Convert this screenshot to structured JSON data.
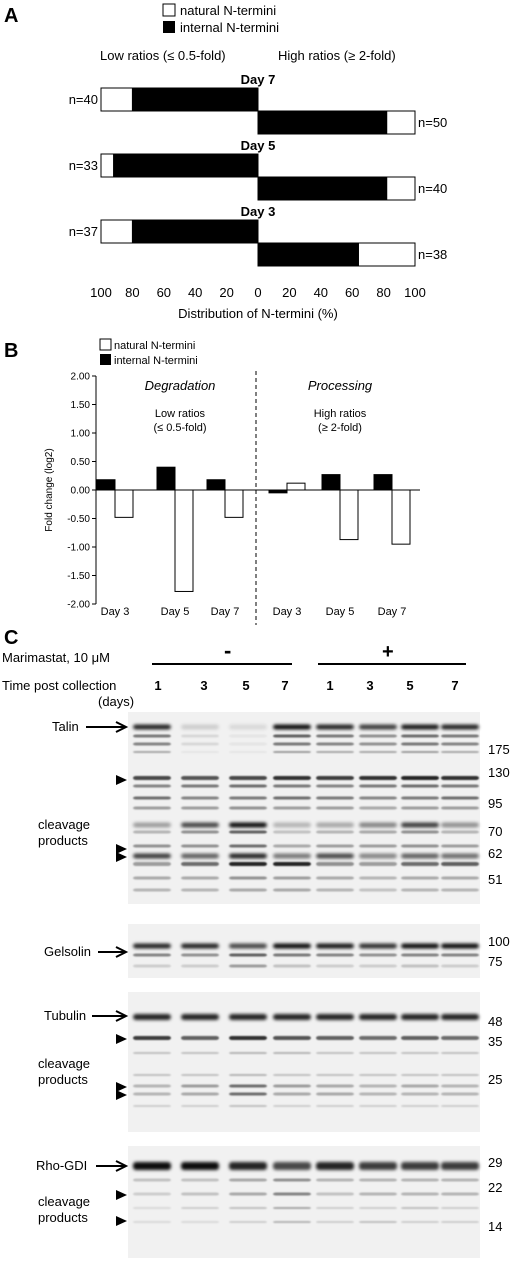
{
  "panelA": {
    "letter": "A",
    "legend": [
      "natural N-termini",
      "internal N-termini"
    ],
    "low_heading": "Low ratios (≤ 0.5-fold)",
    "high_heading": "High ratios (≥ 2-fold)",
    "xlabel": "Distribution of N-termini (%)",
    "ticks": [
      "100",
      "80",
      "60",
      "40",
      "20",
      "0",
      "20",
      "40",
      "60",
      "80",
      "100"
    ],
    "days": [
      {
        "label": "Day 7",
        "low_n": "n=40",
        "high_n": "n=50",
        "low_natural": 20,
        "low_internal": 80,
        "high_internal": 82,
        "high_natural": 18
      },
      {
        "label": "Day 5",
        "low_n": "n=33",
        "high_n": "n=40",
        "low_natural": 8,
        "low_internal": 92,
        "high_internal": 82,
        "high_natural": 18
      },
      {
        "label": "Day 3",
        "low_n": "n=37",
        "high_n": "n=38",
        "low_natural": 20,
        "low_internal": 80,
        "high_internal": 64,
        "high_natural": 36
      }
    ]
  },
  "panelB": {
    "letter": "B",
    "legend": [
      "natural N-termini",
      "internal N-termini"
    ],
    "ylabel": "Fold change (log2)",
    "yticks": [
      "2.00",
      "1.50",
      "1.00",
      "0.50",
      "0.00",
      "-0.50",
      "-1.00",
      "-1.50",
      "-2.00"
    ],
    "degradation": "Degradation",
    "processing": "Processing",
    "low_ratio_line1": "Low ratios",
    "low_ratio_line2": "(≤ 0.5-fold)",
    "high_ratio_line1": "High ratios",
    "high_ratio_line2": "(≥ 2-fold)",
    "groups": [
      "Day 3",
      "Day 5",
      "Day 7",
      "Day 3",
      "Day 5",
      "Day 7"
    ]
  },
  "chart_data": {
    "type": "bar",
    "categories": [
      "Day 3",
      "Day 5",
      "Day 7",
      "Day 3",
      "Day 5",
      "Day 7"
    ],
    "series": [
      {
        "name": "internal N-termini",
        "values": [
          0.18,
          0.4,
          0.18,
          -0.05,
          0.27,
          0.27
        ]
      },
      {
        "name": "natural N-termini",
        "values": [
          -0.48,
          -1.78,
          -0.48,
          0.12,
          -0.87,
          -0.95
        ]
      }
    ],
    "ylabel": "Fold change (log2)",
    "ylim": [
      -2.0,
      2.0
    ]
  },
  "panelC": {
    "letter": "C",
    "marimastat_label": "Marimastat,  10 μM",
    "minus": "-",
    "plus": "+",
    "time_label": "Time post collection",
    "days_unit": "(days)",
    "lanes": [
      "1",
      "3",
      "5",
      "7",
      "1",
      "3",
      "5",
      "7"
    ],
    "talin": {
      "name": "Talin",
      "cleavage": "cleavage",
      "products": "products",
      "markers": [
        "175",
        "130",
        "95",
        "70",
        "62",
        "51"
      ]
    },
    "gelsolin": {
      "name": "Gelsolin",
      "markers": [
        "100",
        "75"
      ]
    },
    "tubulin": {
      "name": "Tubulin",
      "cleavage": "cleavage",
      "products": "products",
      "markers": [
        "48",
        "35",
        "25"
      ]
    },
    "rhogdi": {
      "name": "Rho-GDI",
      "cleavage": "cleavage",
      "products": "products",
      "markers": [
        "29",
        "22",
        "14"
      ]
    }
  }
}
